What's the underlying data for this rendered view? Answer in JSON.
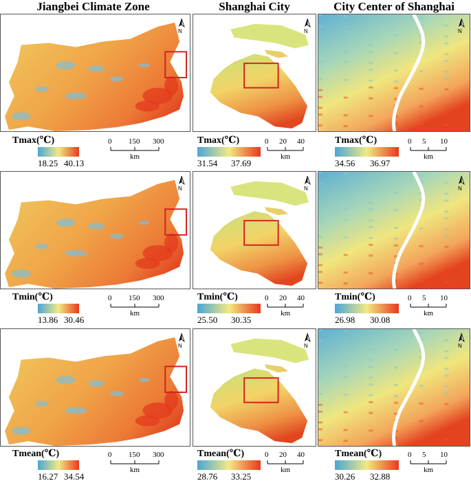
{
  "columns": [
    {
      "title": "Jiangbei Climate Zone"
    },
    {
      "title": "Shanghai  City"
    },
    {
      "title": "City Center of Shanghai"
    }
  ],
  "north_label": "N",
  "colors": {
    "low": "#4aa6d6",
    "mid": "#f2e983",
    "high": "#e8391f",
    "frame": "#d62020",
    "river": "#ffffff"
  },
  "scales": {
    "jiangbei": {
      "ticks": [
        "0",
        "150",
        "300"
      ],
      "unit": "km"
    },
    "shanghai": {
      "ticks": [
        "0",
        "20",
        "40"
      ],
      "unit": "km"
    },
    "center": {
      "ticks": [
        "0",
        "5",
        "10"
      ],
      "unit": "km"
    }
  },
  "rows": [
    {
      "variable": "Tmax(℃)",
      "legends": [
        {
          "min": "18.25",
          "max": "40.13"
        },
        {
          "min": "31.54",
          "max": "37.69"
        },
        {
          "min": "34.56",
          "max": "36.97"
        }
      ]
    },
    {
      "variable": "Tmin(℃)",
      "legends": [
        {
          "min": "13.86",
          "max": "30.46"
        },
        {
          "min": "25.50",
          "max": "30.35"
        },
        {
          "min": "26.98",
          "max": "30.08"
        }
      ]
    },
    {
      "variable": "Tmean(℃)",
      "legends": [
        {
          "min": "16.27",
          "max": "34.54"
        },
        {
          "min": "28.76",
          "max": "33.25"
        },
        {
          "min": "30.26",
          "max": "32.88"
        }
      ]
    }
  ]
}
